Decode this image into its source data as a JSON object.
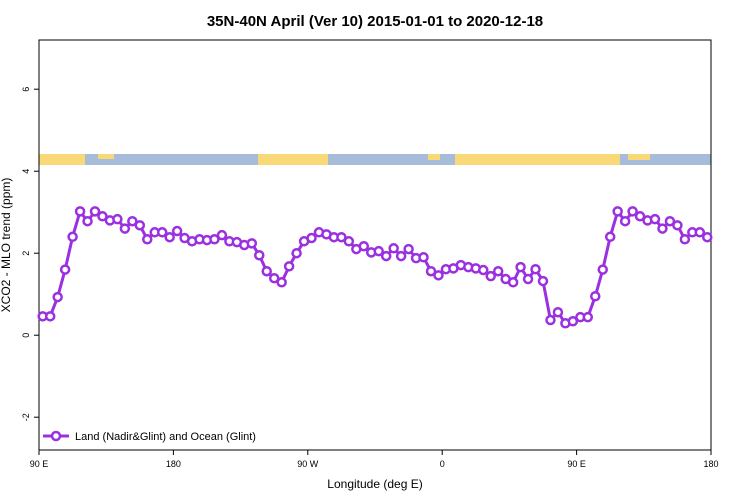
{
  "chart_data": {
    "type": "line",
    "title": "35N-40N April (Ver 10)   2015-01-01 to 2020-12-18",
    "x_label": "Longitude (deg E)",
    "y_label": "XCO2 - MLO trend (ppm)",
    "xlim": [
      90,
      540
    ],
    "ylim": [
      -2.8,
      7.2
    ],
    "xticks": [
      {
        "value": 90,
        "label": "90 E"
      },
      180,
      {
        "value": 270,
        "label": "90 W"
      },
      {
        "value": 360,
        "label": "0"
      },
      {
        "value": 450,
        "label": "90 E"
      },
      {
        "value": 540,
        "label": "180"
      }
    ],
    "yticks": [
      -2,
      0,
      2,
      4,
      6
    ],
    "legend": "bottom-left",
    "x": [
      92.5,
      97.5,
      102.5,
      107.5,
      112.5,
      117.5,
      122.5,
      127.5,
      132.5,
      137.5,
      142.5,
      147.5,
      152.5,
      157.5,
      162.5,
      167.5,
      172.5,
      177.5,
      182.5,
      187.5,
      192.5,
      197.5,
      202.5,
      207.5,
      212.5,
      217.5,
      222.5,
      227.5,
      232.5,
      237.5,
      242.5,
      247.5,
      252.5,
      257.5,
      262.5,
      267.5,
      272.5,
      277.5,
      282.5,
      287.5,
      292.5,
      297.5,
      302.5,
      307.5,
      312.5,
      317.5,
      322.5,
      327.5,
      332.5,
      337.5,
      342.5,
      347.5,
      352.5,
      357.5,
      362.5,
      367.5,
      372.5,
      377.5,
      382.5,
      387.5,
      392.5,
      397.5,
      402.5,
      407.5,
      412.5,
      417.5,
      422.5,
      427.5,
      432.5,
      437.5,
      442.5,
      447.5,
      452.5,
      457.5,
      462.5,
      467.5,
      472.5,
      477.5,
      482.5,
      487.5,
      492.5,
      497.5,
      502.5,
      507.5,
      512.5,
      517.5,
      522.5,
      527.5,
      532.5,
      537.5
    ],
    "series": [
      {
        "name": "Land (Nadir&Glint) and Ocean (Glint)",
        "color": "#9b30e0",
        "values": [
          0.46,
          0.46,
          0.93,
          1.6,
          2.4,
          3.02,
          2.78,
          3.02,
          2.9,
          2.8,
          2.83,
          2.6,
          2.78,
          2.68,
          2.34,
          2.51,
          2.51,
          2.39,
          2.54,
          2.37,
          2.29,
          2.34,
          2.32,
          2.34,
          2.44,
          2.29,
          2.27,
          2.2,
          2.24,
          1.95,
          1.56,
          1.39,
          1.29,
          1.68,
          2.0,
          2.29,
          2.37,
          2.51,
          2.46,
          2.39,
          2.39,
          2.29,
          2.1,
          2.17,
          2.02,
          2.05,
          1.93,
          2.12,
          1.93,
          2.1,
          1.88,
          1.9,
          1.56,
          1.46,
          1.61,
          1.63,
          1.71,
          1.66,
          1.63,
          1.59,
          1.44,
          1.56,
          1.37,
          1.29,
          1.66,
          1.37,
          1.61,
          1.32,
          0.37,
          0.56,
          0.29,
          0.34,
          0.44,
          0.44,
          0.95,
          1.6,
          2.4,
          3.02,
          2.78,
          3.02,
          2.9,
          2.8,
          2.83,
          2.6,
          2.78,
          2.68,
          2.34,
          2.51,
          2.51,
          2.39
        ]
      }
    ]
  }
}
